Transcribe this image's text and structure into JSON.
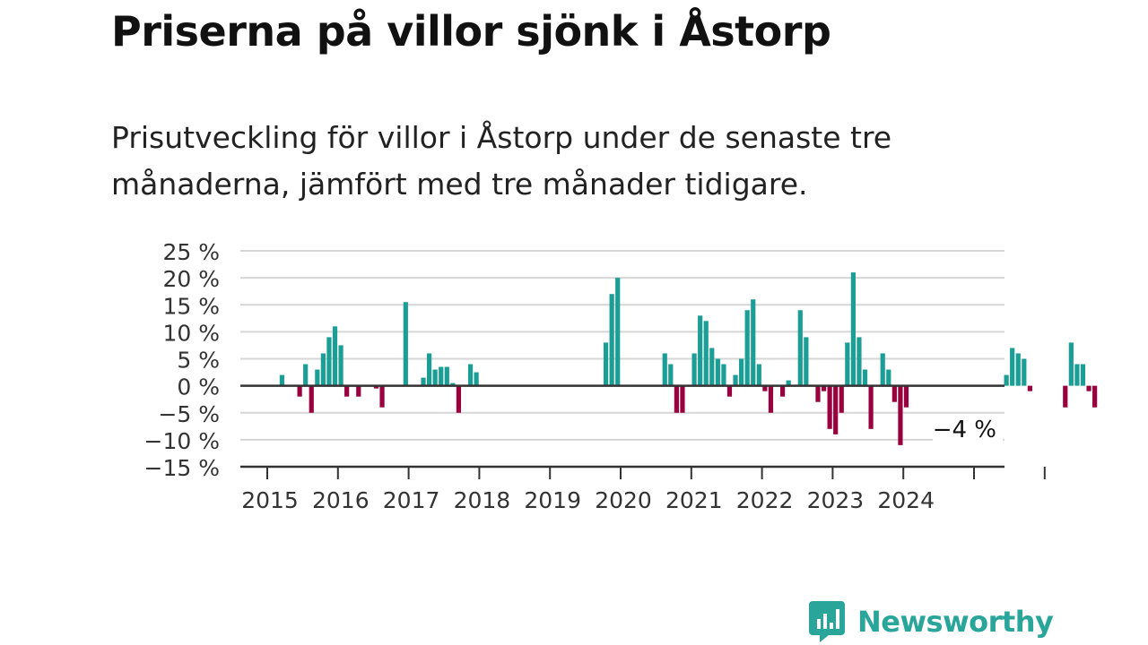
{
  "title": "Priserna på villor sjönk i Åstorp",
  "subtitle": "Prisutveckling för villor i Åstorp under de senaste tre månaderna, jämfört med tre månader tidigare.",
  "brand": {
    "name": "Newsworthy",
    "color": "#2aa59a"
  },
  "colors": {
    "positive": "#1a9e95",
    "negative": "#99003d",
    "grid": "#d6d6d6",
    "axis": "#333333"
  },
  "chart_data": {
    "type": "bar",
    "x_start": "2015-01",
    "ylim": [
      -15,
      25
    ],
    "yticks": [
      -15,
      -10,
      -5,
      0,
      5,
      10,
      15,
      20,
      25
    ],
    "ytick_labels": [
      "−15 %",
      "−10 %",
      "−5 %",
      "0 %",
      "5 %",
      "10 %",
      "15 %",
      "20 %",
      "25 %"
    ],
    "xticks": [
      "2015",
      "2016",
      "2017",
      "2018",
      "2019",
      "2020",
      "2021",
      "2022",
      "2023",
      "2024"
    ],
    "grid": true,
    "annotation": "−4 %",
    "values": [
      null,
      null,
      2,
      null,
      null,
      -2,
      4,
      -5,
      3,
      6,
      9,
      11,
      7.5,
      -2,
      null,
      -2,
      null,
      null,
      -0.5,
      -4,
      null,
      null,
      null,
      15.5,
      null,
      null,
      1.5,
      6,
      3,
      3.5,
      3.5,
      0.5,
      -5,
      null,
      4,
      2.5,
      null,
      null,
      null,
      null,
      null,
      null,
      null,
      null,
      null,
      null,
      null,
      null,
      null,
      null,
      null,
      null,
      null,
      null,
      null,
      null,
      null,
      8,
      17,
      20,
      null,
      null,
      null,
      null,
      null,
      null,
      null,
      6,
      4,
      -5,
      -5,
      null,
      6,
      13,
      12,
      7,
      5,
      4,
      -2,
      2,
      5,
      14,
      16,
      4,
      -1,
      -5,
      null,
      -2,
      1,
      null,
      14,
      9,
      null,
      -3,
      -1,
      -8,
      -9,
      -5,
      8,
      21,
      9,
      3,
      -8,
      null,
      6,
      3,
      -3,
      -11,
      -4,
      null,
      null,
      null,
      null,
      null,
      null,
      null,
      null,
      null,
      null,
      null,
      null,
      null,
      null,
      null,
      null,
      2,
      7,
      6,
      5,
      -1,
      null,
      null,
      null,
      null,
      null,
      -4,
      8,
      4,
      4,
      -1,
      -4
    ]
  }
}
